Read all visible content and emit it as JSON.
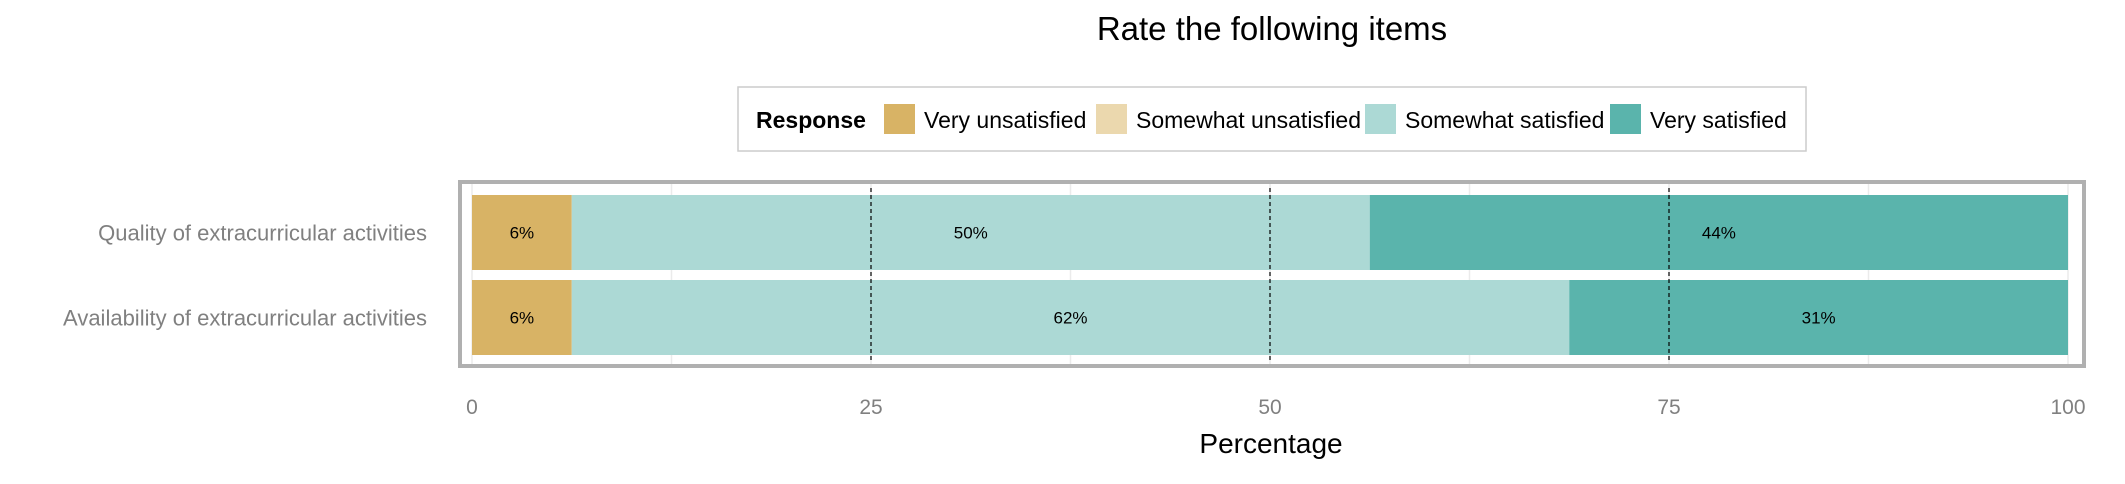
{
  "chart_data": {
    "type": "bar",
    "orientation": "horizontal",
    "stacked": true,
    "title": "Rate the following items",
    "xlabel": "Percentage",
    "ylabel": "",
    "xlim": [
      0,
      100
    ],
    "xticks": [
      0,
      25,
      50,
      75,
      100
    ],
    "grid": true,
    "legend": {
      "title": "Response",
      "position": "top",
      "items": [
        {
          "name": "Very unsatisfied",
          "color": "#d8b365"
        },
        {
          "name": "Somewhat unsatisfied",
          "color": "#ebd8ae"
        },
        {
          "name": "Somewhat satisfied",
          "color": "#acd9d5"
        },
        {
          "name": "Very satisfied",
          "color": "#5ab4ac"
        }
      ]
    },
    "categories": [
      "Quality of extracurricular activities",
      "Availability of extracurricular activities"
    ],
    "series": [
      {
        "name": "Very unsatisfied",
        "color": "#d8b365",
        "values": [
          6.25,
          6.25
        ],
        "labels": [
          "6%",
          "6%"
        ]
      },
      {
        "name": "Somewhat unsatisfied",
        "color": "#ebd8ae",
        "values": [
          0,
          0
        ],
        "labels": [
          "",
          ""
        ]
      },
      {
        "name": "Somewhat satisfied",
        "color": "#acd9d5",
        "values": [
          50,
          62.5
        ],
        "labels": [
          "50%",
          "62%"
        ]
      },
      {
        "name": "Very satisfied",
        "color": "#5ab4ac",
        "values": [
          43.75,
          31.25
        ],
        "labels": [
          "44%",
          "31%"
        ]
      }
    ]
  }
}
